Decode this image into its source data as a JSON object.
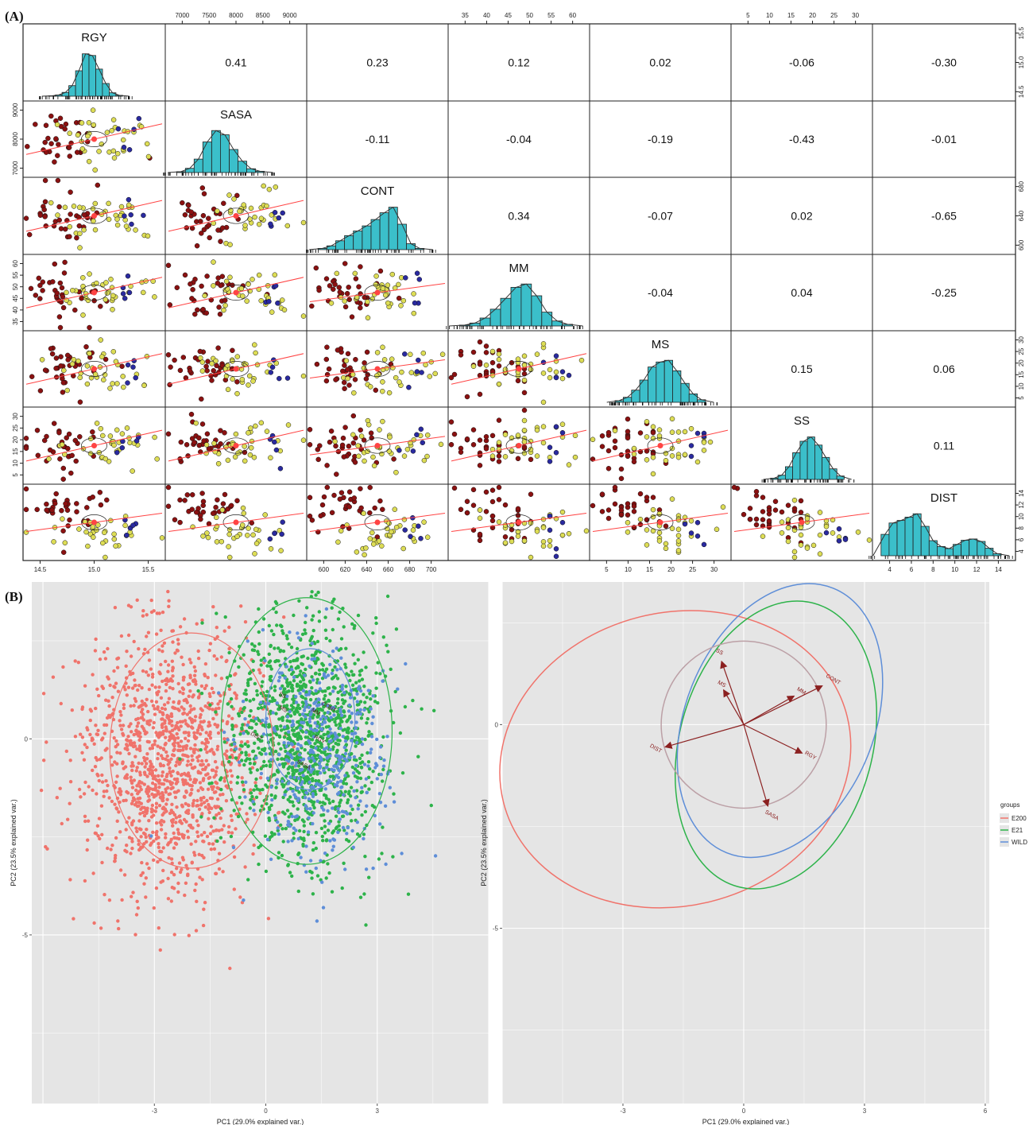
{
  "figure": {
    "panel_a_label": "(A)",
    "panel_b_label": "(B)"
  },
  "chart_data": [
    {
      "type": "scatter-matrix",
      "panel": "(A)",
      "variables": [
        "RGY",
        "SASA",
        "CONT",
        "MM",
        "MS",
        "SS",
        "DIST"
      ],
      "correlations": [
        {
          "row": 0,
          "col": 1,
          "value": "0.41"
        },
        {
          "row": 0,
          "col": 2,
          "value": "0.23"
        },
        {
          "row": 0,
          "col": 3,
          "value": "0.12"
        },
        {
          "row": 0,
          "col": 4,
          "value": "0.02"
        },
        {
          "row": 0,
          "col": 5,
          "value": "-0.06"
        },
        {
          "row": 0,
          "col": 6,
          "value": "-0.30"
        },
        {
          "row": 1,
          "col": 2,
          "value": "-0.11"
        },
        {
          "row": 1,
          "col": 3,
          "value": "-0.04"
        },
        {
          "row": 1,
          "col": 4,
          "value": "-0.19"
        },
        {
          "row": 1,
          "col": 5,
          "value": "-0.43"
        },
        {
          "row": 1,
          "col": 6,
          "value": "-0.01"
        },
        {
          "row": 2,
          "col": 3,
          "value": "0.34"
        },
        {
          "row": 2,
          "col": 4,
          "value": "-0.07"
        },
        {
          "row": 2,
          "col": 5,
          "value": "0.02"
        },
        {
          "row": 2,
          "col": 6,
          "value": "-0.65"
        },
        {
          "row": 3,
          "col": 4,
          "value": "-0.04"
        },
        {
          "row": 3,
          "col": 5,
          "value": "0.04"
        },
        {
          "row": 3,
          "col": 6,
          "value": "-0.25"
        },
        {
          "row": 4,
          "col": 5,
          "value": "0.15"
        },
        {
          "row": 4,
          "col": 6,
          "value": "0.06"
        },
        {
          "row": 5,
          "col": 6,
          "value": "0.11"
        }
      ],
      "ranges": {
        "RGY": [
          14.2,
          15.7
        ],
        "SASA": [
          6500,
          9000
        ],
        "CONT": [
          598,
          712
        ],
        "MM": [
          30,
          62
        ],
        "MS": [
          4,
          34
        ],
        "SS": [
          0,
          33
        ],
        "DIST": [
          3.8,
          14.8
        ]
      },
      "histograms": {
        "RGY": [
          0.01,
          0.03,
          0.09,
          0.25,
          0.6,
          1.0,
          0.96,
          0.64,
          0.3,
          0.08,
          0.02
        ],
        "SASA": [
          0.02,
          0.1,
          0.32,
          0.73,
          1.0,
          0.9,
          0.55,
          0.27,
          0.09,
          0.03
        ],
        "CONT": [
          0.03,
          0.09,
          0.21,
          0.33,
          0.44,
          0.56,
          0.71,
          0.87,
          1.0,
          0.6,
          0.14,
          0.03
        ],
        "MM": [
          0.02,
          0.07,
          0.19,
          0.4,
          0.66,
          0.92,
          1.0,
          0.72,
          0.33,
          0.12,
          0.04
        ],
        "MS": [
          0.04,
          0.12,
          0.29,
          0.53,
          0.84,
          0.96,
          1.0,
          0.75,
          0.45,
          0.2,
          0.06
        ],
        "SS": [
          0.03,
          0.1,
          0.3,
          0.63,
          0.9,
          1.0,
          0.81,
          0.52,
          0.25,
          0.08
        ],
        "DIST": [
          0.51,
          0.78,
          0.84,
          0.92,
          1.0,
          0.7,
          0.36,
          0.22,
          0.17,
          0.27,
          0.37,
          0.4,
          0.34,
          0.18,
          0.05
        ]
      },
      "ticks": {
        "top": {
          "SASA": [
            "7000",
            "7500",
            "8000",
            "8500",
            "9000"
          ],
          "MM": [
            "35",
            "40",
            "45",
            "50",
            "55",
            "60"
          ],
          "SS": [
            "5",
            "10",
            "15",
            "20",
            "25",
            "30"
          ]
        },
        "bottom": {
          "RGY": [
            "14.5",
            "15.0",
            "15.5"
          ],
          "CONT": [
            "600",
            "620",
            "640",
            "660",
            "680",
            "700"
          ],
          "MS": [
            "5",
            "10",
            "15",
            "20",
            "25",
            "30"
          ],
          "DIST": [
            "4",
            "6",
            "8",
            "10",
            "12",
            "14"
          ]
        },
        "left": {
          "SASA": [
            "7000",
            "8000",
            "9000"
          ],
          "MM": [
            "35",
            "40",
            "45",
            "50",
            "55",
            "60"
          ],
          "SS": [
            "5",
            "10",
            "15",
            "20",
            "25",
            "30"
          ]
        },
        "right": {
          "RGY": [
            "14.5",
            "15.0",
            "15.5"
          ],
          "CONT": [
            "600",
            "640",
            "680"
          ],
          "MS": [
            "5",
            "10",
            "15",
            "20",
            "25",
            "30"
          ],
          "DIST": [
            "4",
            "6",
            "8",
            "10",
            "12",
            "14"
          ]
        }
      },
      "colors": {
        "hist_fill": "#3bbfca",
        "group_a": "#8b1111",
        "group_b": "#dddd55",
        "group_c": "#2a2aa0",
        "fit_line": "#ff4444"
      }
    },
    {
      "type": "scatter",
      "panel": "(B) left",
      "xlabel": "PC1 (29.0% explained var.)",
      "ylabel": "PC2 (23.5% explained var.)",
      "xlim": [
        -6.3,
        6
      ],
      "ylim": [
        -9.3,
        4
      ],
      "xticks": [
        "-3",
        "0",
        "3"
      ],
      "yticks": [
        "0",
        "-5"
      ],
      "clusters": [
        {
          "group": "E200",
          "color": "#f0736b",
          "cx": -2.6,
          "cy": -0.6,
          "sx": 1.15,
          "sy": 1.65
        },
        {
          "group": "E21",
          "color": "#2db34a",
          "cx": 1.1,
          "cy": 0.0,
          "sx": 1.05,
          "sy": 1.55
        },
        {
          "group": "WILD",
          "color": "#5e8ed8",
          "cx": 1.4,
          "cy": -0.4,
          "sx": 0.95,
          "sy": 1.45
        }
      ],
      "ellipses": [
        {
          "color": "#f0736b",
          "cx": -2.0,
          "cy": -0.3,
          "rx": 2.2,
          "ry": 3.0
        },
        {
          "color": "#2db34a",
          "cx": 1.1,
          "cy": 0.2,
          "rx": 2.3,
          "ry": 3.4
        },
        {
          "color": "#5e8ed8",
          "cx": 1.2,
          "cy": 0.5,
          "rx": 1.2,
          "ry": 1.8
        }
      ],
      "loadings": [
        {
          "label": "SS",
          "x": -0.55,
          "y": 1.55
        },
        {
          "label": "MS",
          "x": -0.5,
          "y": 0.85
        },
        {
          "label": "MM",
          "x": 1.25,
          "y": 0.7
        },
        {
          "label": "CONT",
          "x": 1.95,
          "y": 0.95
        },
        {
          "label": "DIST",
          "x": -1.95,
          "y": -0.55
        },
        {
          "label": "RGY",
          "x": 1.45,
          "y": -0.7
        },
        {
          "label": "SASA",
          "x": 0.6,
          "y": -2.0
        }
      ]
    },
    {
      "type": "biplot",
      "panel": "(B) right",
      "xlabel": "PC1 (29.0% explained var.)",
      "ylabel": "PC2 (23.5% explained var.)",
      "xlim": [
        -6,
        6.1
      ],
      "ylim": [
        -9.3,
        3.5
      ],
      "xticks": [
        "-3",
        "0",
        "3",
        "6"
      ],
      "yticks": [
        "0",
        "-5"
      ],
      "ellipses": [
        {
          "color": "#f0736b",
          "cx": -1.7,
          "cy": -0.85,
          "rx": 4.4,
          "ry": 3.6,
          "rot": -14
        },
        {
          "color": "#2db34a",
          "cx": 0.8,
          "cy": -0.5,
          "rx": 2.4,
          "ry": 3.6,
          "rot": 15
        },
        {
          "color": "#5e8ed8",
          "cx": 0.9,
          "cy": 0.1,
          "rx": 2.35,
          "ry": 3.5,
          "rot": 22
        },
        {
          "color": "#bca0a6",
          "cx": 0.0,
          "cy": 0.0,
          "rx": 2.05,
          "ry": 2.05,
          "rot": 0
        }
      ],
      "loadings": [
        {
          "label": "SS",
          "x": -0.55,
          "y": 1.55
        },
        {
          "label": "MS",
          "x": -0.5,
          "y": 0.85
        },
        {
          "label": "MM",
          "x": 1.25,
          "y": 0.7
        },
        {
          "label": "CONT",
          "x": 1.95,
          "y": 0.95
        },
        {
          "label": "DIST",
          "x": -1.95,
          "y": -0.55
        },
        {
          "label": "RGY",
          "x": 1.45,
          "y": -0.7
        },
        {
          "label": "SASA",
          "x": 0.6,
          "y": -2.0
        }
      ],
      "arrow_color": "#8b2020",
      "legend": {
        "title": "groups",
        "entries": [
          "E200",
          "E21",
          "WILD"
        ],
        "colors": [
          "#f0736b",
          "#2db34a",
          "#5e8ed8"
        ]
      }
    }
  ]
}
